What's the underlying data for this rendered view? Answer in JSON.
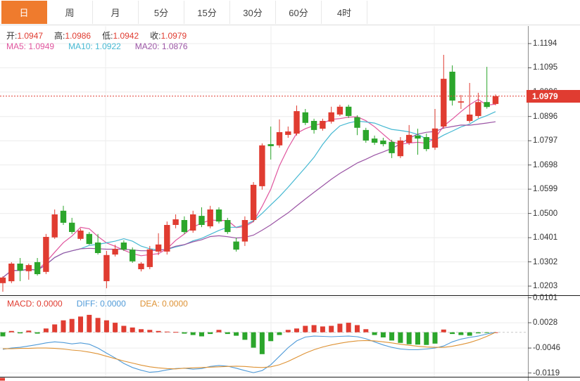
{
  "toolbar": {
    "tabs": [
      {
        "label": "日",
        "active": true
      },
      {
        "label": "周",
        "active": false
      },
      {
        "label": "月",
        "active": false
      },
      {
        "label": "5分",
        "active": false
      },
      {
        "label": "15分",
        "active": false
      },
      {
        "label": "30分",
        "active": false
      },
      {
        "label": "60分",
        "active": false
      },
      {
        "label": "4时",
        "active": false
      }
    ]
  },
  "legend": {
    "open_label": "开:",
    "open_value": "1.0947",
    "high_label": "高:",
    "high_value": "1.0986",
    "low_label": "低:",
    "low_value": "1.0942",
    "close_label": "收:",
    "close_value": "1.0979",
    "ma5_label": "MA5:",
    "ma5_value": "1.0949",
    "ma10_label": "MA10:",
    "ma10_value": "1.0922",
    "ma20_label": "MA20:",
    "ma20_value": "1.0876",
    "macd_label": "MACD:",
    "macd_value": "0.0000",
    "diff_label": "DIFF:",
    "diff_value": "0.0000",
    "dea_label": "DEA:",
    "dea_value": "0.0000"
  },
  "price_axis": {
    "ticks": [
      "1.1194",
      "1.1095",
      "1.0996",
      "1.0896",
      "1.0797",
      "1.0698",
      "1.0599",
      "1.0500",
      "1.0401",
      "1.0302",
      "1.0203"
    ],
    "current": "1.0979"
  },
  "macd_axis": {
    "ticks": [
      "0.0101",
      "0.0028",
      "-0.0046",
      "-0.0119"
    ]
  },
  "colors": {
    "up": "#e03c31",
    "down": "#2ca62c",
    "ma5": "#e0559e",
    "ma10": "#45b8d2",
    "ma20": "#9b55a5",
    "diff": "#4f9ad8",
    "dea": "#de9234",
    "accent": "#ef7b2d",
    "grid": "#ececec",
    "price_line": "#e03c31"
  },
  "chart_data": [
    {
      "type": "candlestick",
      "title": "",
      "ylabel": "",
      "legend_position": "top-left",
      "grid": true,
      "ylim": [
        1.0166,
        1.1257
      ],
      "y_ticks": [
        1.1194,
        1.1095,
        1.0996,
        1.0896,
        1.0797,
        1.0698,
        1.0599,
        1.05,
        1.0401,
        1.0302,
        1.0203
      ],
      "current_price": 1.0979,
      "ma_periods": [
        5,
        10,
        20
      ],
      "v_grid_x": [
        150,
        385,
        617
      ],
      "candles_ohlc": [
        [
          1.0215,
          1.0243,
          1.018,
          1.0238
        ],
        [
          1.0223,
          1.0301,
          1.0215,
          1.0295
        ],
        [
          1.0295,
          1.0318,
          1.0223,
          1.0266
        ],
        [
          1.0264,
          1.0295,
          1.0229,
          1.0289
        ],
        [
          1.0301,
          1.0318,
          1.0246,
          1.0252
        ],
        [
          1.0261,
          1.0416,
          1.0252,
          1.0404
        ],
        [
          1.0402,
          1.0516,
          1.0396,
          1.0496
        ],
        [
          1.0511,
          1.0531,
          1.0453,
          1.0462
        ],
        [
          1.0462,
          1.0482,
          1.0416,
          1.0424
        ],
        [
          1.0396,
          1.0438,
          1.039,
          1.043
        ],
        [
          1.0416,
          1.0424,
          1.0372,
          1.0375
        ],
        [
          1.0381,
          1.0416,
          1.0332,
          1.0338
        ],
        [
          1.0223,
          1.0347,
          1.0194,
          1.033
        ],
        [
          1.0332,
          1.0372,
          1.0324,
          1.0355
        ],
        [
          1.0381,
          1.039,
          1.0347,
          1.0352
        ],
        [
          1.0352,
          1.0361,
          1.0298,
          1.0304
        ],
        [
          1.0272,
          1.0301,
          1.0263,
          1.0295
        ],
        [
          1.0281,
          1.0367,
          1.0272,
          1.0353
        ],
        [
          1.0344,
          1.0419,
          1.033,
          1.0373
        ],
        [
          1.0344,
          1.0467,
          1.0332,
          1.0453
        ],
        [
          1.0453,
          1.0496,
          1.0439,
          1.0476
        ],
        [
          1.0473,
          1.0488,
          1.0416,
          1.0424
        ],
        [
          1.043,
          1.0511,
          1.0421,
          1.0496
        ],
        [
          1.049,
          1.0525,
          1.0444,
          1.0453
        ],
        [
          1.0447,
          1.0531,
          1.0439,
          1.0516
        ],
        [
          1.0516,
          1.0525,
          1.0459,
          1.0467
        ],
        [
          1.0473,
          1.0482,
          1.0416,
          1.0424
        ],
        [
          1.0385,
          1.0401,
          1.0344,
          1.0352
        ],
        [
          1.0385,
          1.0488,
          1.0367,
          1.0473
        ],
        [
          1.0473,
          1.0628,
          1.0464,
          1.0617
        ],
        [
          1.0611,
          1.0786,
          1.0597,
          1.0778
        ],
        [
          1.0783,
          1.0855,
          1.072,
          1.0775
        ],
        [
          1.0778,
          1.0884,
          1.0769,
          1.0832
        ],
        [
          1.0821,
          1.0855,
          1.0809,
          1.0835
        ],
        [
          1.0826,
          1.0941,
          1.0818,
          1.0918
        ],
        [
          1.0913,
          1.0927,
          1.0861,
          1.087
        ],
        [
          1.0878,
          1.0887,
          1.0826,
          1.0841
        ],
        [
          1.0846,
          1.0887,
          1.0838,
          1.0878
        ],
        [
          1.0875,
          1.0936,
          1.0867,
          1.0913
        ],
        [
          1.0904,
          1.0944,
          1.0898,
          1.0936
        ],
        [
          1.0936,
          1.0944,
          1.089,
          1.0898
        ],
        [
          1.0893,
          1.0901,
          1.082,
          1.085
        ],
        [
          1.0841,
          1.085,
          1.0789,
          1.0798
        ],
        [
          1.0806,
          1.0818,
          1.078,
          1.0789
        ],
        [
          1.0798,
          1.0809,
          1.0774,
          1.0783
        ],
        [
          1.0792,
          1.0801,
          1.0726,
          1.0746
        ],
        [
          1.0734,
          1.0812,
          1.0726,
          1.0798
        ],
        [
          1.0789,
          1.0861,
          1.078,
          1.0821
        ],
        [
          1.0818,
          1.0846,
          1.074,
          1.0806
        ],
        [
          1.0812,
          1.0826,
          1.0754,
          1.0763
        ],
        [
          1.0769,
          1.0927,
          1.076,
          1.0847
        ],
        [
          1.0855,
          1.1148,
          1.0846,
          1.105
        ],
        [
          1.1079,
          1.1105,
          1.0941,
          1.0961
        ],
        [
          1.0953,
          1.0984,
          1.0927,
          1.0958
        ],
        [
          1.0878,
          1.1033,
          1.087,
          1.0904
        ],
        [
          1.0898,
          1.0993,
          1.089,
          1.0955
        ],
        [
          1.0955,
          1.1099,
          1.0928,
          1.0935
        ],
        [
          1.0947,
          1.0986,
          1.0942,
          1.0979
        ]
      ]
    },
    {
      "type": "bar",
      "title": "MACD",
      "ylim": [
        -0.0131,
        0.0107
      ],
      "y_ticks": [
        0.0101,
        0.0028,
        -0.0046,
        -0.0119
      ],
      "zero_line": 0,
      "values": [
        -0.0012,
        0.0004,
        -0.0003,
        0.0005,
        -0.0004,
        0.0011,
        0.0023,
        0.0035,
        0.0039,
        0.0046,
        0.0051,
        0.0042,
        0.0035,
        0.0028,
        0.0019,
        0.0014,
        0.0009,
        0.0007,
        0.0004,
        0.0002,
        0.0001,
        -0.0004,
        -0.0008,
        -0.0012,
        -0.0005,
        0.0007,
        -0.0005,
        -0.001,
        -0.0022,
        -0.0045,
        -0.0064,
        -0.0026,
        -0.0008,
        0.0007,
        0.0011,
        0.0019,
        0.0021,
        0.0017,
        0.0019,
        0.0025,
        0.0028,
        0.0021,
        0.0009,
        -0.0008,
        -0.0015,
        -0.0024,
        -0.0031,
        -0.0035,
        -0.0036,
        -0.0037,
        -0.0033,
        0.0008,
        -0.0005,
        -0.0008,
        -0.001,
        -0.0003,
        -0.0001,
        0.0
      ],
      "series": [
        {
          "name": "DIFF",
          "values": [
            -0.005,
            -0.0046,
            -0.0044,
            -0.004,
            -0.0036,
            -0.0031,
            -0.0028,
            -0.003,
            -0.0034,
            -0.0031,
            -0.0035,
            -0.0046,
            -0.0061,
            -0.0075,
            -0.0091,
            -0.0103,
            -0.0111,
            -0.0117,
            -0.0115,
            -0.011,
            -0.0106,
            -0.0105,
            -0.0108,
            -0.0106,
            -0.01,
            -0.0097,
            -0.0099,
            -0.0105,
            -0.0112,
            -0.0118,
            -0.0112,
            -0.0095,
            -0.007,
            -0.0045,
            -0.0025,
            -0.0014,
            -0.0011,
            -0.0012,
            -0.0013,
            -0.0012,
            -0.0011,
            -0.0013,
            -0.0019,
            -0.0028,
            -0.0037,
            -0.0044,
            -0.0049,
            -0.0051,
            -0.0051,
            -0.0049,
            -0.0046,
            -0.004,
            -0.0028,
            -0.002,
            -0.0015,
            -0.0011,
            -0.0005,
            0.0
          ]
        },
        {
          "name": "DEA",
          "values": [
            -0.0048,
            -0.0048,
            -0.0047,
            -0.0047,
            -0.0046,
            -0.0046,
            -0.0047,
            -0.0049,
            -0.0052,
            -0.0054,
            -0.0058,
            -0.0063,
            -0.007,
            -0.0077,
            -0.0084,
            -0.009,
            -0.0096,
            -0.0101,
            -0.0104,
            -0.0106,
            -0.0107,
            -0.0105,
            -0.0104,
            -0.0103,
            -0.0102,
            -0.0101,
            -0.01,
            -0.0099,
            -0.01,
            -0.0102,
            -0.0103,
            -0.0101,
            -0.0095,
            -0.0085,
            -0.0073,
            -0.0061,
            -0.0051,
            -0.0043,
            -0.0037,
            -0.0032,
            -0.0028,
            -0.0025,
            -0.0024,
            -0.0025,
            -0.0028,
            -0.0031,
            -0.0035,
            -0.0038,
            -0.0041,
            -0.0043,
            -0.0044,
            -0.0044,
            -0.0041,
            -0.0036,
            -0.003,
            -0.0022,
            -0.0012,
            0.0
          ]
        }
      ]
    }
  ]
}
